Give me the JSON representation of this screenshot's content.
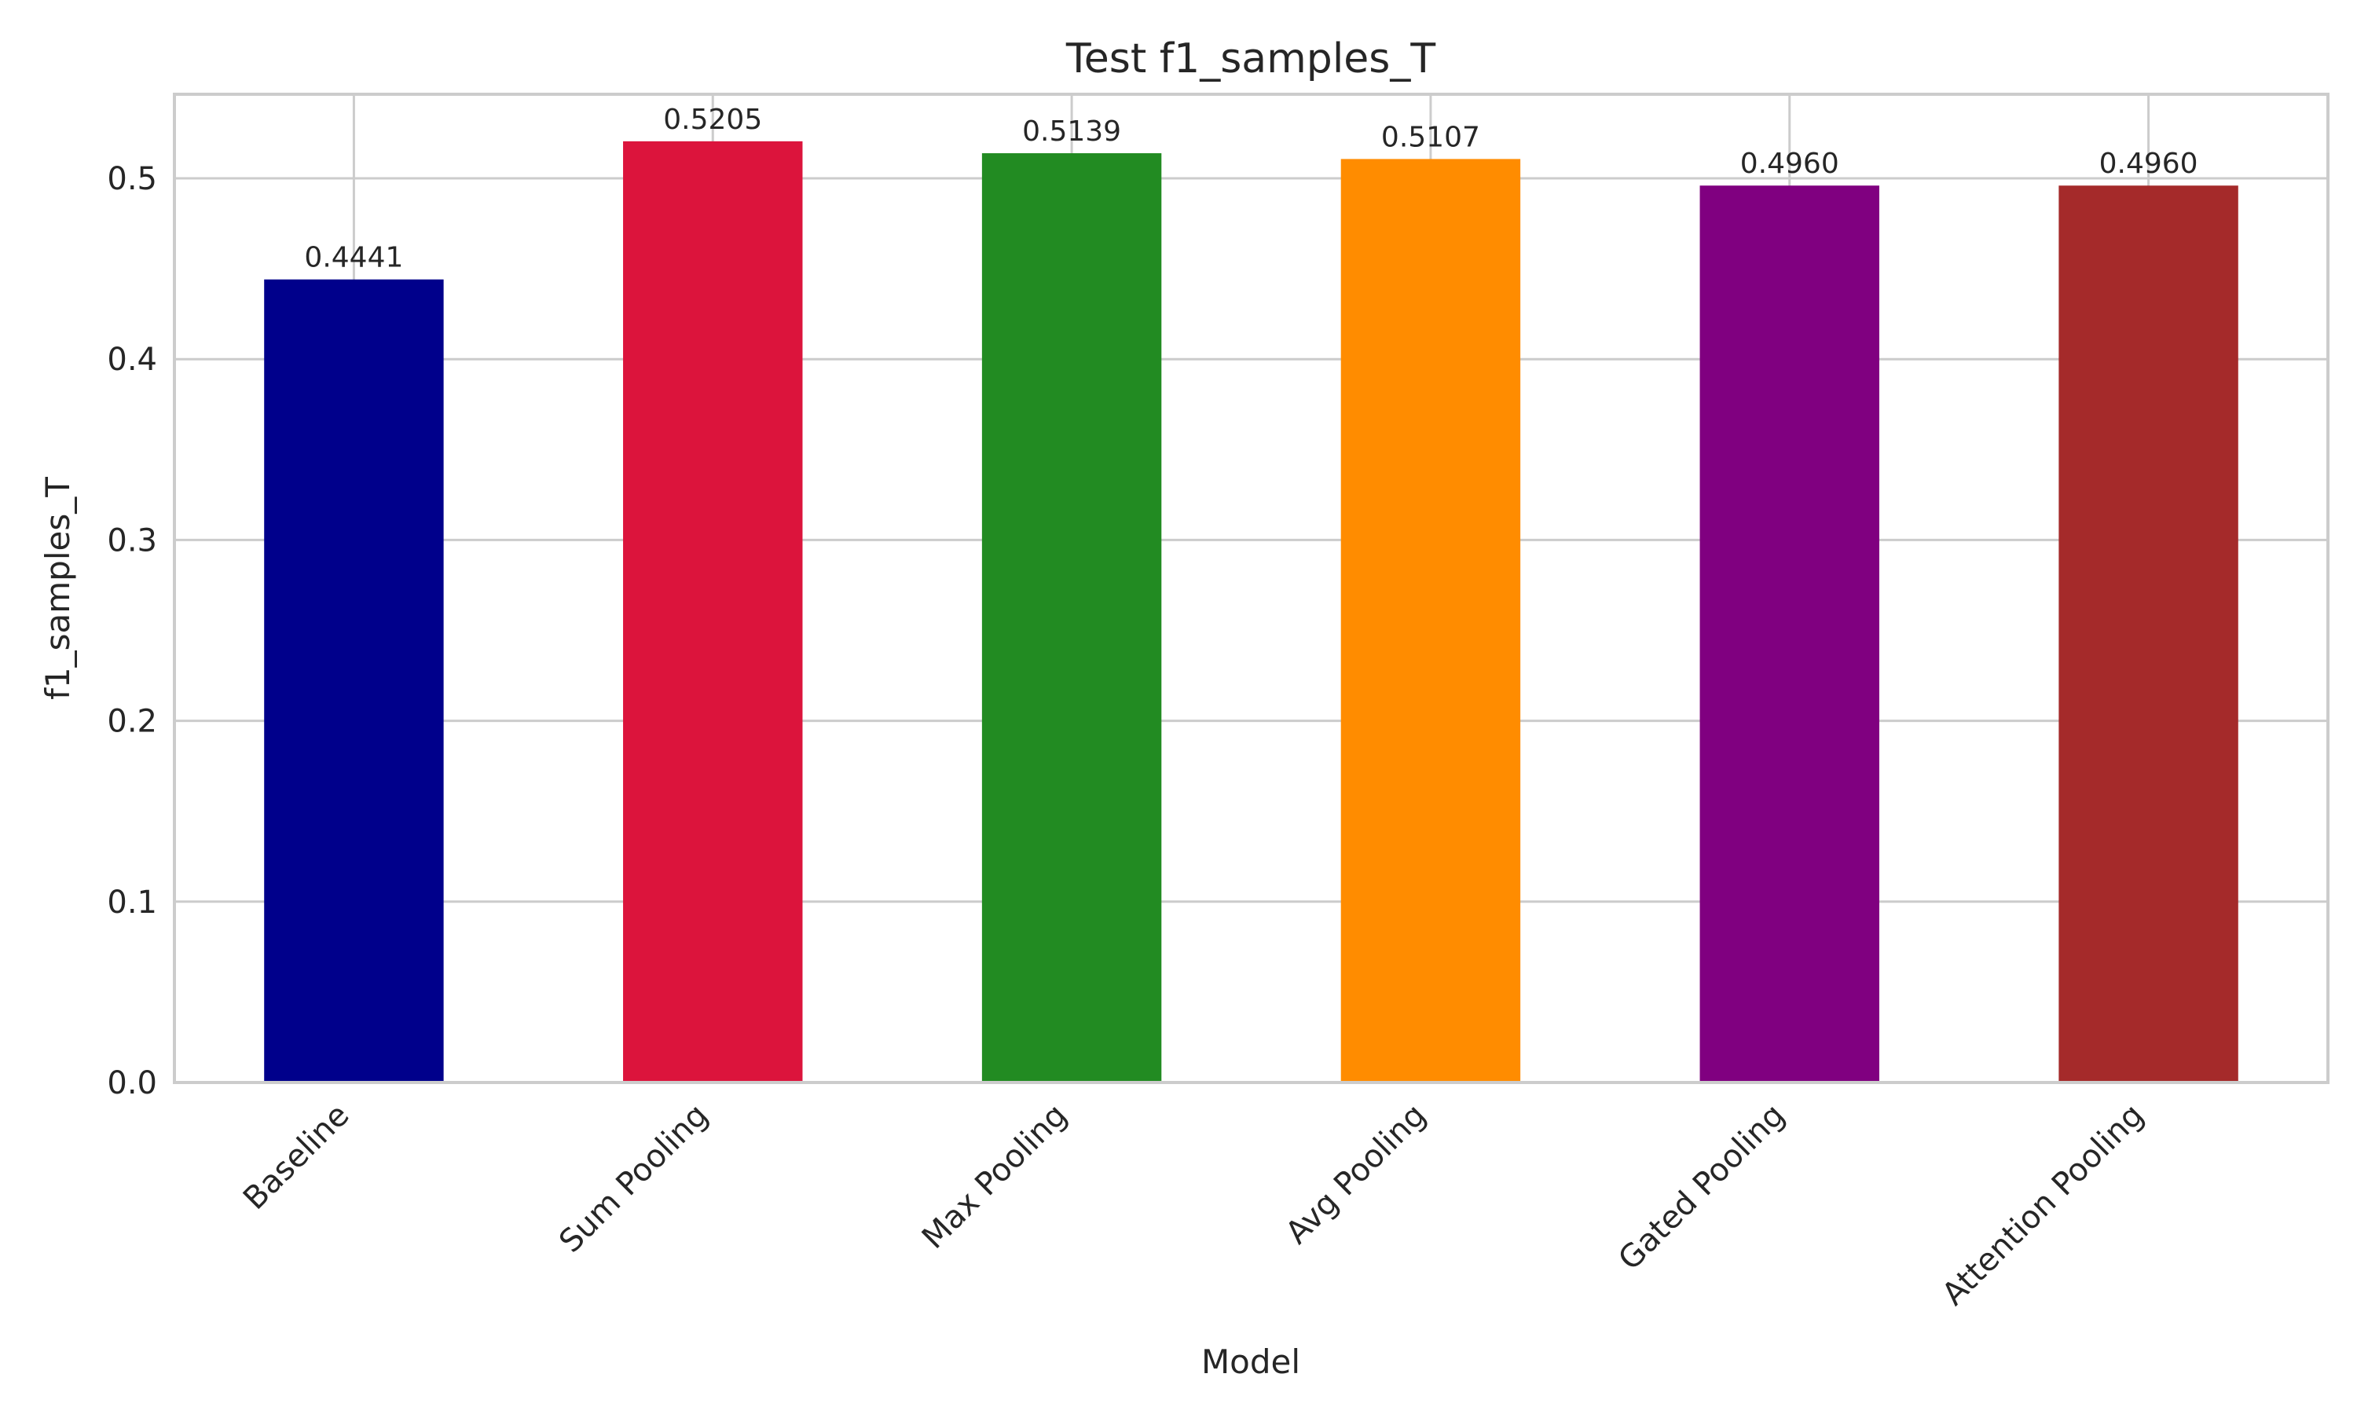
{
  "chart_data": {
    "type": "bar",
    "title": "Test f1_samples_T",
    "xlabel": "Model",
    "ylabel": "f1_samples_T",
    "categories": [
      "Baseline",
      "Sum Pooling",
      "Max Pooling",
      "Avg Pooling",
      "Gated Pooling",
      "Attention Pooling"
    ],
    "values": [
      0.4441,
      0.5205,
      0.5139,
      0.5107,
      0.496,
      0.496
    ],
    "value_labels": [
      "0.4441",
      "0.5205",
      "0.5139",
      "0.5107",
      "0.4960",
      "0.4960"
    ],
    "colors": [
      "#00008b",
      "#dc143c",
      "#228b22",
      "#ff8c00",
      "#800080",
      "#a52a2a"
    ],
    "ylim": [
      0,
      0.5465
    ],
    "yticks": [
      0.0,
      0.1,
      0.2,
      0.3,
      0.4,
      0.5
    ],
    "ytick_labels": [
      "0.0",
      "0.1",
      "0.2",
      "0.3",
      "0.4",
      "0.5"
    ],
    "grid": true,
    "legend": "none"
  }
}
